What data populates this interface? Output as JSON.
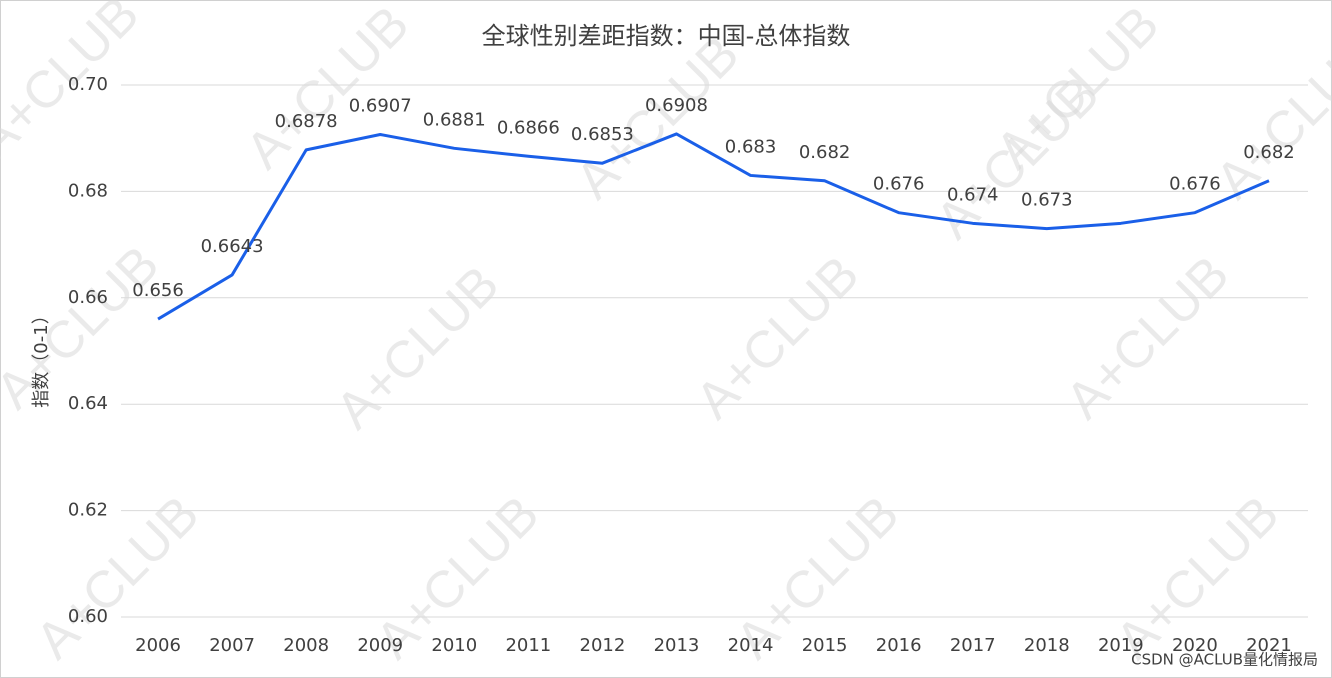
{
  "chart_data": {
    "type": "line",
    "title": "全球性别差距指数：中国-总体指数",
    "y_label": "指数（0-1）",
    "categories": [
      "2006",
      "2007",
      "2008",
      "2009",
      "2010",
      "2011",
      "2012",
      "2013",
      "2014",
      "2015",
      "2016",
      "2017",
      "2018",
      "2019",
      "2020",
      "2021"
    ],
    "series": [
      {
        "name": "总体指数",
        "color": "#1a5fe8",
        "values": [
          0.656,
          0.6643,
          0.6878,
          0.6907,
          0.6881,
          0.6866,
          0.6853,
          0.6908,
          0.683,
          0.682,
          0.676,
          0.674,
          0.673,
          0.674,
          0.676,
          0.682
        ],
        "value_labels": [
          "0.656",
          "0.6643",
          "0.6878",
          "0.6907",
          "0.6881",
          "0.6866",
          "0.6853",
          "0.6908",
          "0.683",
          "0.682",
          "0.676",
          "0.674",
          "0.673",
          null,
          "0.676",
          "0.682"
        ]
      }
    ],
    "ylim": [
      0.6,
      0.7
    ],
    "yticks": [
      {
        "value": 0.6,
        "label": "0.60"
      },
      0.62,
      0.64,
      0.66,
      0.68,
      {
        "value": 0.7,
        "label": "0.70"
      }
    ],
    "grid": true
  },
  "watermark": "A+CLUB",
  "footer": "CSDN @ACLUB量化情报局"
}
